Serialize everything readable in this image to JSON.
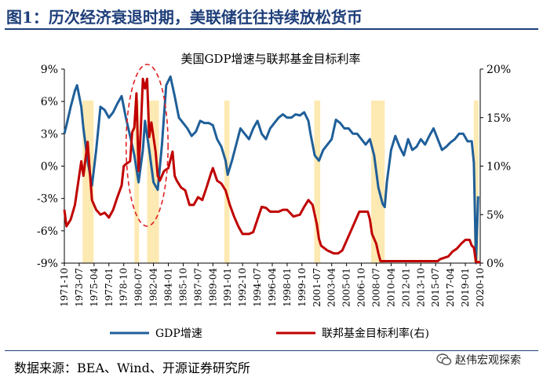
{
  "figure": {
    "title": "图1：历次经济衰退时期，美联储往往持续放松货币",
    "source": "数据来源：BEA、Wind、开源证券研究所",
    "watermark": "赵伟宏观探索",
    "watermark_icon": "wechat-logo-icon",
    "colors": {
      "title": "#1f3f7a",
      "gdp": "#1f5f99",
      "rate": "#c00000",
      "recession": "#fde9b2",
      "circle": "#e02020"
    }
  },
  "chart_data": {
    "type": "line",
    "title": "美国GDP增速与联邦基金目标利率",
    "legend_position": "bottom",
    "left_axis": {
      "ticks": [
        "9%",
        "6%",
        "3%",
        "0%",
        "-3%",
        "-6%",
        "-9%"
      ],
      "range": [
        -9,
        9
      ]
    },
    "right_axis": {
      "ticks": [
        "20%",
        "15%",
        "10%",
        "5%",
        "0%"
      ],
      "range": [
        0,
        20
      ]
    },
    "x_range": [
      1971.75,
      2020.75
    ],
    "x_ticks": [
      "1971-10",
      "1973-07",
      "1975-04",
      "1977-01",
      "1978-10",
      "1980-07",
      "1982-04",
      "1984-01",
      "1985-10",
      "1987-07",
      "1989-04",
      "1991-01",
      "1992-10",
      "1994-07",
      "1996-04",
      "1998-01",
      "1999-10",
      "2001-07",
      "2003-04",
      "2005-01",
      "2006-10",
      "2008-07",
      "2010-04",
      "2012-01",
      "2013-10",
      "2015-07",
      "2017-04",
      "2019-01",
      "2020-10"
    ],
    "recessions": [
      [
        1973.9,
        1975.2
      ],
      [
        1980.0,
        1980.5
      ],
      [
        1981.5,
        1982.9
      ],
      [
        1990.6,
        1991.2
      ],
      [
        2001.2,
        2001.9
      ],
      [
        2007.9,
        2009.5
      ],
      [
        2020.0,
        2020.5
      ]
    ],
    "annotation": "dashed ellipse highlighting 1979–1983",
    "series": [
      {
        "name": "GDP增速",
        "axis": "left",
        "color": "#1f5f99",
        "points": [
          [
            1971.75,
            3.0
          ],
          [
            1972.0,
            3.8
          ],
          [
            1972.5,
            5.5
          ],
          [
            1973.0,
            7.0
          ],
          [
            1973.25,
            7.5
          ],
          [
            1973.75,
            5.5
          ],
          [
            1974.0,
            3.5
          ],
          [
            1974.5,
            0.5
          ],
          [
            1975.0,
            -1.8
          ],
          [
            1975.5,
            1.5
          ],
          [
            1976.0,
            5.5
          ],
          [
            1976.5,
            5.2
          ],
          [
            1977.0,
            4.5
          ],
          [
            1977.5,
            5.0
          ],
          [
            1978.0,
            5.8
          ],
          [
            1978.5,
            6.5
          ],
          [
            1979.0,
            4.5
          ],
          [
            1979.5,
            2.8
          ],
          [
            1980.0,
            1.0
          ],
          [
            1980.5,
            -1.5
          ],
          [
            1981.0,
            1.5
          ],
          [
            1981.25,
            4.2
          ],
          [
            1981.75,
            1.5
          ],
          [
            1982.25,
            -1.5
          ],
          [
            1982.75,
            -2.2
          ],
          [
            1983.25,
            2.0
          ],
          [
            1983.75,
            7.5
          ],
          [
            1984.25,
            8.3
          ],
          [
            1984.75,
            6.5
          ],
          [
            1985.25,
            4.5
          ],
          [
            1985.75,
            4.0
          ],
          [
            1986.25,
            3.5
          ],
          [
            1986.75,
            2.8
          ],
          [
            1987.25,
            3.2
          ],
          [
            1987.75,
            4.2
          ],
          [
            1988.25,
            4.0
          ],
          [
            1988.75,
            4.0
          ],
          [
            1989.25,
            3.8
          ],
          [
            1989.75,
            2.5
          ],
          [
            1990.25,
            1.8
          ],
          [
            1990.75,
            0.5
          ],
          [
            1991.0,
            -0.8
          ],
          [
            1991.5,
            0.5
          ],
          [
            1992.0,
            2.0
          ],
          [
            1992.5,
            3.5
          ],
          [
            1993.0,
            3.0
          ],
          [
            1993.5,
            2.5
          ],
          [
            1994.0,
            3.5
          ],
          [
            1994.5,
            4.2
          ],
          [
            1995.0,
            3.0
          ],
          [
            1995.5,
            2.5
          ],
          [
            1996.0,
            3.5
          ],
          [
            1996.5,
            4.0
          ],
          [
            1997.0,
            4.5
          ],
          [
            1997.5,
            4.8
          ],
          [
            1998.0,
            4.5
          ],
          [
            1998.5,
            4.5
          ],
          [
            1999.0,
            4.8
          ],
          [
            1999.5,
            4.7
          ],
          [
            2000.0,
            5.0
          ],
          [
            2000.5,
            4.2
          ],
          [
            2000.75,
            3.0
          ],
          [
            2001.25,
            1.0
          ],
          [
            2001.75,
            0.5
          ],
          [
            2002.25,
            1.5
          ],
          [
            2002.75,
            2.0
          ],
          [
            2003.25,
            2.5
          ],
          [
            2003.75,
            4.3
          ],
          [
            2004.25,
            4.0
          ],
          [
            2004.75,
            3.5
          ],
          [
            2005.25,
            3.5
          ],
          [
            2005.75,
            3.0
          ],
          [
            2006.25,
            3.0
          ],
          [
            2006.75,
            2.5
          ],
          [
            2007.25,
            2.0
          ],
          [
            2007.75,
            2.5
          ],
          [
            2008.25,
            1.0
          ],
          [
            2008.75,
            -2.0
          ],
          [
            2009.25,
            -3.5
          ],
          [
            2009.5,
            -3.8
          ],
          [
            2009.75,
            -1.5
          ],
          [
            2010.25,
            1.5
          ],
          [
            2010.75,
            2.8
          ],
          [
            2011.25,
            1.8
          ],
          [
            2011.75,
            1.0
          ],
          [
            2012.25,
            2.5
          ],
          [
            2012.75,
            1.5
          ],
          [
            2013.25,
            1.8
          ],
          [
            2013.75,
            2.5
          ],
          [
            2014.25,
            2.0
          ],
          [
            2014.75,
            2.8
          ],
          [
            2015.25,
            3.5
          ],
          [
            2015.75,
            2.5
          ],
          [
            2016.25,
            1.5
          ],
          [
            2016.75,
            1.8
          ],
          [
            2017.25,
            2.2
          ],
          [
            2017.75,
            2.5
          ],
          [
            2018.25,
            3.0
          ],
          [
            2018.75,
            3.0
          ],
          [
            2019.25,
            2.3
          ],
          [
            2019.75,
            2.3
          ],
          [
            2020.0,
            0.3
          ],
          [
            2020.25,
            -9.0
          ],
          [
            2020.5,
            -2.8
          ]
        ]
      },
      {
        "name": "联邦基金目标利率(右)",
        "axis": "right",
        "color": "#c00000",
        "points": [
          [
            1971.75,
            5.5
          ],
          [
            1972.0,
            3.8
          ],
          [
            1972.5,
            4.5
          ],
          [
            1973.0,
            6.0
          ],
          [
            1973.5,
            9.0
          ],
          [
            1973.75,
            10.5
          ],
          [
            1974.0,
            9.0
          ],
          [
            1974.5,
            12.5
          ],
          [
            1974.75,
            9.5
          ],
          [
            1975.0,
            6.5
          ],
          [
            1975.5,
            5.5
          ],
          [
            1976.0,
            5.0
          ],
          [
            1976.5,
            5.2
          ],
          [
            1977.0,
            4.7
          ],
          [
            1977.5,
            5.5
          ],
          [
            1978.0,
            6.8
          ],
          [
            1978.5,
            8.0
          ],
          [
            1978.75,
            10.0
          ],
          [
            1979.0,
            10.2
          ],
          [
            1979.5,
            10.5
          ],
          [
            1979.75,
            13.5
          ],
          [
            1980.0,
            14.0
          ],
          [
            1980.25,
            17.5
          ],
          [
            1980.5,
            9.5
          ],
          [
            1980.75,
            13.5
          ],
          [
            1981.0,
            19.0
          ],
          [
            1981.25,
            18.0
          ],
          [
            1981.5,
            19.0
          ],
          [
            1981.75,
            13.0
          ],
          [
            1982.0,
            14.5
          ],
          [
            1982.5,
            11.5
          ],
          [
            1982.75,
            9.0
          ],
          [
            1983.0,
            8.5
          ],
          [
            1983.5,
            9.5
          ],
          [
            1984.0,
            9.8
          ],
          [
            1984.5,
            11.5
          ],
          [
            1984.75,
            9.0
          ],
          [
            1985.0,
            8.5
          ],
          [
            1985.5,
            7.8
          ],
          [
            1986.0,
            7.5
          ],
          [
            1986.5,
            6.0
          ],
          [
            1987.0,
            6.0
          ],
          [
            1987.5,
            6.8
          ],
          [
            1988.0,
            6.5
          ],
          [
            1988.5,
            7.8
          ],
          [
            1989.0,
            9.2
          ],
          [
            1989.25,
            9.8
          ],
          [
            1989.75,
            8.5
          ],
          [
            1990.25,
            8.2
          ],
          [
            1990.75,
            7.5
          ],
          [
            1991.25,
            6.0
          ],
          [
            1991.75,
            4.8
          ],
          [
            1992.25,
            3.8
          ],
          [
            1992.75,
            3.0
          ],
          [
            1993.5,
            3.0
          ],
          [
            1994.0,
            3.2
          ],
          [
            1994.5,
            4.5
          ],
          [
            1995.0,
            5.8
          ],
          [
            1995.5,
            5.7
          ],
          [
            1996.0,
            5.3
          ],
          [
            1996.5,
            5.3
          ],
          [
            1997.0,
            5.3
          ],
          [
            1997.5,
            5.5
          ],
          [
            1998.0,
            5.5
          ],
          [
            1998.75,
            4.8
          ],
          [
            1999.5,
            5.0
          ],
          [
            2000.0,
            5.8
          ],
          [
            2000.5,
            6.5
          ],
          [
            2001.0,
            6.0
          ],
          [
            2001.25,
            5.0
          ],
          [
            2001.5,
            4.0
          ],
          [
            2001.75,
            2.5
          ],
          [
            2002.0,
            1.8
          ],
          [
            2002.75,
            1.3
          ],
          [
            2003.5,
            1.0
          ],
          [
            2004.0,
            1.0
          ],
          [
            2004.5,
            1.3
          ],
          [
            2005.0,
            2.3
          ],
          [
            2005.5,
            3.3
          ],
          [
            2006.0,
            4.3
          ],
          [
            2006.5,
            5.3
          ],
          [
            2007.5,
            5.3
          ],
          [
            2007.75,
            4.5
          ],
          [
            2008.0,
            3.0
          ],
          [
            2008.5,
            2.0
          ],
          [
            2008.75,
            1.0
          ],
          [
            2009.0,
            0.2
          ],
          [
            2015.75,
            0.2
          ],
          [
            2016.0,
            0.4
          ],
          [
            2017.0,
            0.7
          ],
          [
            2017.5,
            1.2
          ],
          [
            2018.0,
            1.5
          ],
          [
            2018.5,
            2.0
          ],
          [
            2019.0,
            2.4
          ],
          [
            2019.5,
            2.4
          ],
          [
            2019.75,
            1.8
          ],
          [
            2020.0,
            1.6
          ],
          [
            2020.25,
            0.1
          ],
          [
            2020.75,
            0.1
          ]
        ]
      }
    ]
  }
}
